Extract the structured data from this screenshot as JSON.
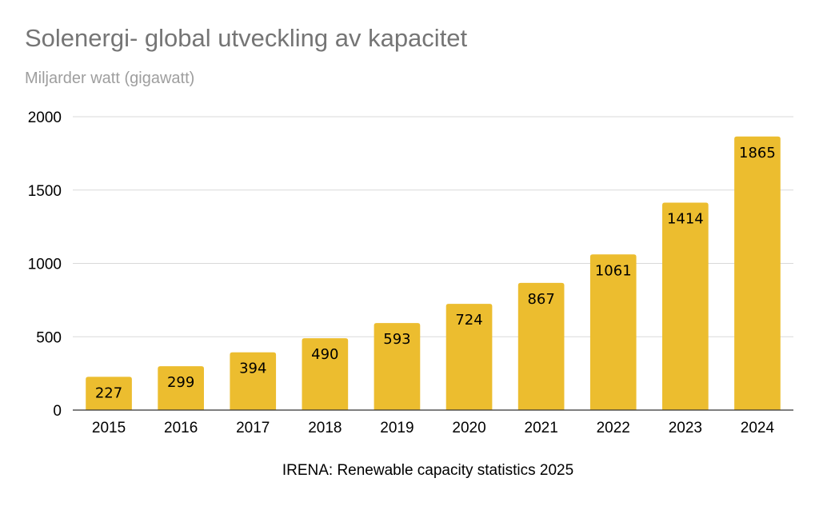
{
  "chart_data": {
    "type": "bar",
    "title": "Solenergi- global utveckling av kapacitet",
    "subtitle": "Miljarder watt (gigawatt)",
    "source": "IRENA: Renewable capacity statistics 2025",
    "categories": [
      "2015",
      "2016",
      "2017",
      "2018",
      "2019",
      "2020",
      "2021",
      "2022",
      "2023",
      "2024"
    ],
    "values": [
      227,
      299,
      394,
      490,
      593,
      724,
      867,
      1061,
      1414,
      1865
    ],
    "ylim": [
      0,
      2000
    ],
    "yticks": [
      "0",
      "500",
      "1000",
      "1500",
      "2000"
    ],
    "xlabel": "",
    "ylabel": "",
    "grid": true,
    "legend": "none",
    "colors": {
      "bar": "#ecbd2f",
      "grid": "#d9d9d9",
      "axis": "#333333"
    }
  }
}
